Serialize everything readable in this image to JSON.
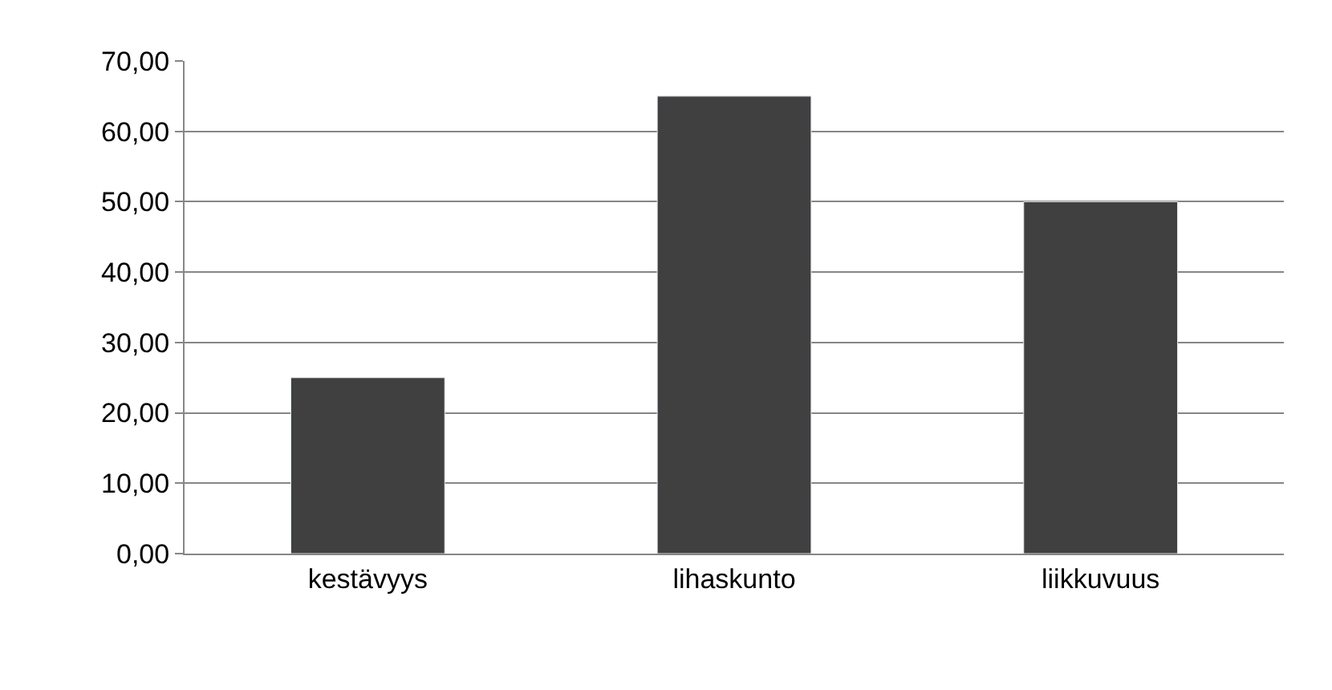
{
  "chart_data": {
    "type": "bar",
    "categories": [
      "kestävyys",
      "lihaskunto",
      "liikkuvuus"
    ],
    "values": [
      25,
      65,
      50
    ],
    "color": "#404040",
    "ylim": [
      0,
      70
    ],
    "yticks": [
      {
        "value": 0,
        "label": "0,00"
      },
      {
        "value": 10,
        "label": "10,00"
      },
      {
        "value": 20,
        "label": "20,00"
      },
      {
        "value": 30,
        "label": "30,00"
      },
      {
        "value": 40,
        "label": "40,00"
      },
      {
        "value": 50,
        "label": "50,00"
      },
      {
        "value": 60,
        "label": "60,00"
      },
      {
        "value": 70,
        "label": "70,00"
      }
    ],
    "grid": "y"
  }
}
